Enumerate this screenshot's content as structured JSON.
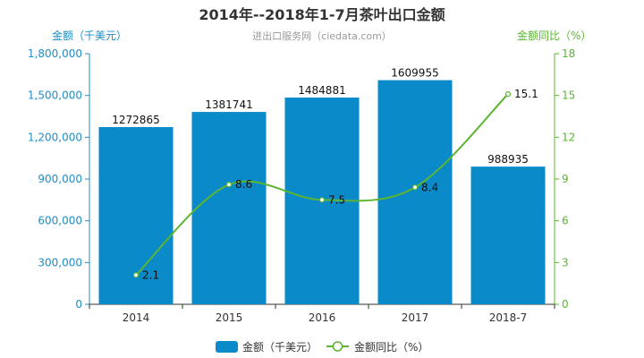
{
  "chart_data": {
    "type": "bar",
    "title": "2014年--2018年1-7月茶叶出口金额",
    "subtitle": "进出口服务网（ciedata.com）",
    "categories": [
      "2014",
      "2015",
      "2016",
      "2017",
      "2018-7"
    ],
    "series": [
      {
        "name": "金额（千美元）",
        "type": "bar",
        "axis": "left",
        "values": [
          1272865,
          1381741,
          1484881,
          1609955,
          988935
        ],
        "labels": [
          "1272865",
          "1381741",
          "1484881",
          "1609955",
          "988935"
        ]
      },
      {
        "name": "金额同比（%）",
        "type": "line",
        "axis": "right",
        "values": [
          2.1,
          8.6,
          7.5,
          8.4,
          15.1
        ],
        "labels": [
          "2.1",
          "8.6",
          "7.5",
          "8.4",
          "15.1"
        ]
      }
    ],
    "yaxis_left": {
      "label": "金额（千美元）",
      "range": [
        0,
        1800000
      ],
      "ticks": [
        0,
        300000,
        600000,
        900000,
        1200000,
        1500000,
        1800000
      ],
      "tick_labels": [
        "0",
        "300,000",
        "600,000",
        "900,000",
        "1,200,000",
        "1,500,000",
        "1,800,000"
      ]
    },
    "yaxis_right": {
      "label": "金额同比（%）",
      "range": [
        0,
        18
      ],
      "ticks": [
        0,
        3,
        6,
        9,
        12,
        15,
        18
      ],
      "tick_labels": [
        "0",
        "3",
        "6",
        "9",
        "12",
        "15",
        "18"
      ]
    },
    "grid": false,
    "legend": "bottom-center"
  },
  "colors": {
    "bar": "#0a8ac9",
    "line": "#5cb531",
    "left_axis": "#1f8dc6",
    "right_axis": "#5cb531",
    "title": "#333333",
    "subtitle": "#9a9a9a"
  }
}
